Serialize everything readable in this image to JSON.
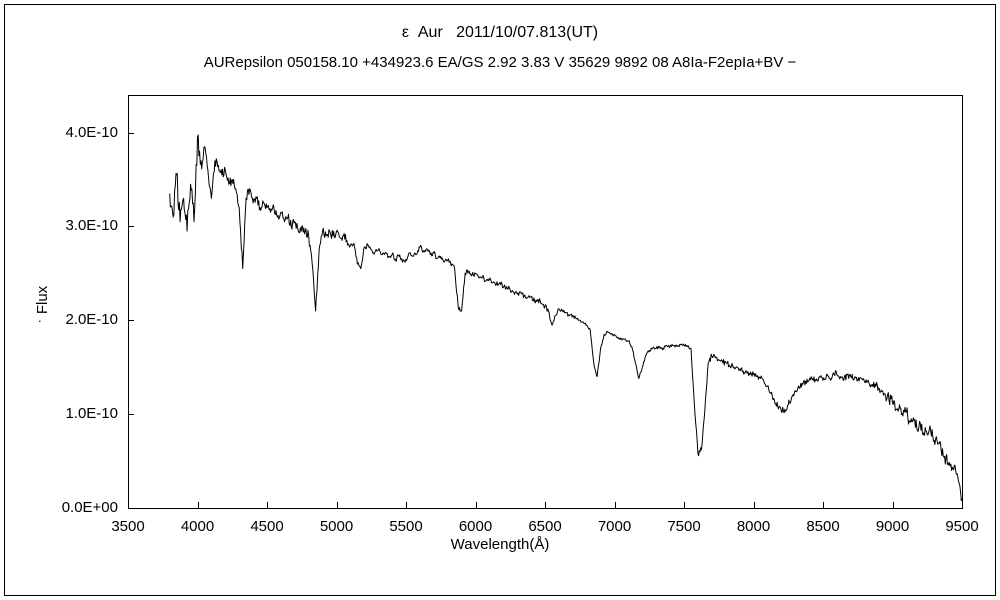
{
  "chart_data": {
    "type": "line",
    "title": "ε  Aur   2011/10/07.813(UT)",
    "subtitle": "AURepsilon 050158.10 +434923.6 EA/GS 2.92 3.83 V 35629 9892 08 A8Ia-F2epIa+BV −",
    "xlabel": "Wavelength(Å)",
    "ylabel": "Flux",
    "ylabel_dot": ".",
    "x_unit": "Å",
    "y_scale_factor": "1E-10",
    "xlim": [
      3500,
      9500
    ],
    "ylim_1e10": [
      0,
      4.4
    ],
    "grid": false,
    "legend": "none",
    "line_color": "#000000",
    "x_ticks": [
      3500,
      4000,
      4500,
      5000,
      5500,
      6000,
      6500,
      7000,
      7500,
      8000,
      8500,
      9000,
      9500
    ],
    "x_tick_labels": [
      "3500",
      "4000",
      "4500",
      "5000",
      "5500",
      "6000",
      "6500",
      "7000",
      "7500",
      "8000",
      "8500",
      "9000",
      "9500"
    ],
    "y_tick_values_1e10": [
      0,
      1,
      2,
      3,
      4
    ],
    "y_tick_labels": [
      "0.0E+00",
      "1.0E-10",
      "2.0E-10",
      "3.0E-10",
      "4.0E-10"
    ],
    "x_start": 3800,
    "x_step": 25,
    "values_1e10": [
      3.35,
      3.1,
      3.55,
      3.05,
      3.3,
      2.95,
      3.45,
      3.05,
      3.95,
      3.7,
      3.85,
      3.6,
      3.3,
      3.7,
      3.65,
      3.55,
      3.6,
      3.45,
      3.5,
      3.4,
      3.2,
      2.55,
      3.3,
      3.4,
      3.25,
      3.3,
      3.2,
      3.25,
      3.2,
      3.15,
      3.2,
      3.1,
      3.15,
      3.05,
      3.1,
      3.0,
      3.05,
      2.95,
      3.0,
      2.95,
      2.9,
      2.6,
      2.1,
      2.75,
      2.95,
      2.9,
      2.95,
      2.9,
      2.95,
      2.88,
      2.9,
      2.85,
      2.8,
      2.82,
      2.6,
      2.55,
      2.78,
      2.8,
      2.75,
      2.72,
      2.75,
      2.7,
      2.72,
      2.68,
      2.7,
      2.65,
      2.68,
      2.62,
      2.65,
      2.72,
      2.68,
      2.7,
      2.78,
      2.74,
      2.76,
      2.7,
      2.72,
      2.66,
      2.68,
      2.62,
      2.64,
      2.58,
      2.55,
      2.15,
      2.1,
      2.5,
      2.52,
      2.48,
      2.5,
      2.45,
      2.46,
      2.42,
      2.44,
      2.4,
      2.38,
      2.4,
      2.35,
      2.36,
      2.32,
      2.3,
      2.28,
      2.3,
      2.26,
      2.24,
      2.25,
      2.2,
      2.22,
      2.18,
      2.15,
      2.1,
      1.95,
      2.05,
      2.12,
      2.1,
      2.08,
      2.05,
      2.05,
      2.02,
      2.0,
      1.98,
      1.95,
      1.9,
      1.55,
      1.4,
      1.7,
      1.85,
      1.88,
      1.85,
      1.85,
      1.82,
      1.8,
      1.8,
      1.78,
      1.72,
      1.55,
      1.38,
      1.5,
      1.62,
      1.68,
      1.7,
      1.7,
      1.72,
      1.7,
      1.73,
      1.72,
      1.73,
      1.72,
      1.74,
      1.73,
      1.72,
      1.7,
      1.1,
      0.58,
      0.62,
      1.05,
      1.55,
      1.62,
      1.6,
      1.58,
      1.57,
      1.55,
      1.52,
      1.52,
      1.5,
      1.48,
      1.46,
      1.45,
      1.42,
      1.42,
      1.4,
      1.38,
      1.35,
      1.3,
      1.22,
      1.15,
      1.08,
      1.03,
      1.05,
      1.1,
      1.18,
      1.25,
      1.3,
      1.33,
      1.35,
      1.36,
      1.38,
      1.36,
      1.4,
      1.36,
      1.42,
      1.38,
      1.44,
      1.42,
      1.4,
      1.36,
      1.42,
      1.4,
      1.38,
      1.36,
      1.38,
      1.34,
      1.36,
      1.3,
      1.32,
      1.28,
      1.24,
      1.2,
      1.15,
      1.12,
      1.05,
      1.1,
      0.98,
      1.02,
      0.92,
      0.96,
      0.85,
      0.9,
      0.8,
      0.78,
      0.82,
      0.72,
      0.68,
      0.62,
      0.55,
      0.48,
      0.4,
      0.45,
      0.28,
      0.1
    ],
    "noise_zones": [
      {
        "until": 4050,
        "amp": 0.12
      },
      {
        "until": 5100,
        "amp": 0.05
      },
      {
        "until": 6550,
        "amp": 0.028
      },
      {
        "until": 7550,
        "amp": 0.018
      },
      {
        "until": 8950,
        "amp": 0.035
      },
      {
        "until": 9600,
        "amp": 0.07
      }
    ]
  }
}
